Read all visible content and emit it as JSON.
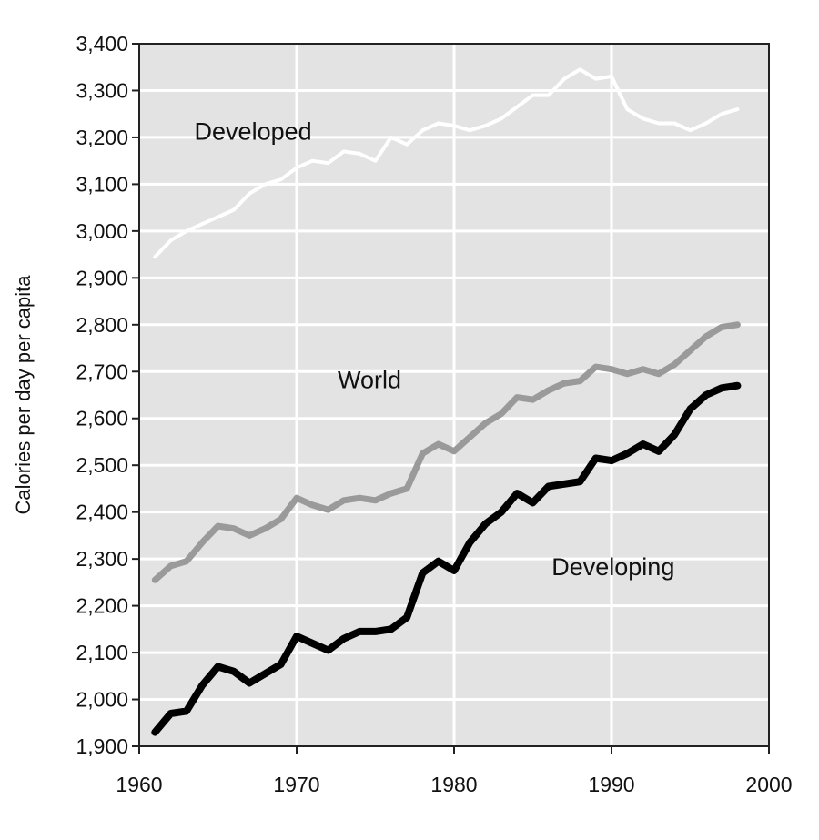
{
  "chart_data": {
    "type": "line",
    "title": "",
    "xlabel": "",
    "ylabel": "Calories per day per capita",
    "xlim": [
      1960,
      2000
    ],
    "ylim": [
      1900,
      3400
    ],
    "xticks": [
      1960,
      1970,
      1980,
      1990,
      2000
    ],
    "yticks": [
      1900,
      2000,
      2100,
      2200,
      2300,
      2400,
      2500,
      2600,
      2700,
      2800,
      2900,
      3000,
      3100,
      3200,
      3300,
      3400
    ],
    "grid": true,
    "legend": "none",
    "colors": {
      "background": "#ffffff",
      "plot_area": "#e3e3e3",
      "grid": "#ffffff",
      "axis": "#222222",
      "developed": "#ffffff",
      "world": "#9a9a9a",
      "developing": "#000000"
    },
    "series": [
      {
        "name": "Developed",
        "x": [
          1961,
          1962,
          1963,
          1964,
          1965,
          1966,
          1967,
          1968,
          1969,
          1970,
          1971,
          1972,
          1973,
          1974,
          1975,
          1976,
          1977,
          1978,
          1979,
          1980,
          1981,
          1982,
          1983,
          1984,
          1985,
          1986,
          1987,
          1988,
          1989,
          1990,
          1991,
          1992,
          1993,
          1994,
          1995,
          1996,
          1997,
          1998
        ],
        "values": [
          2945,
          2980,
          3000,
          3015,
          3030,
          3045,
          3080,
          3100,
          3110,
          3135,
          3150,
          3145,
          3170,
          3165,
          3150,
          3200,
          3185,
          3215,
          3230,
          3225,
          3215,
          3225,
          3240,
          3265,
          3290,
          3290,
          3325,
          3345,
          3325,
          3330,
          3260,
          3240,
          3230,
          3230,
          3215,
          3230,
          3250,
          3260
        ]
      },
      {
        "name": "World",
        "x": [
          1961,
          1962,
          1963,
          1964,
          1965,
          1966,
          1967,
          1968,
          1969,
          1970,
          1971,
          1972,
          1973,
          1974,
          1975,
          1976,
          1977,
          1978,
          1979,
          1980,
          1981,
          1982,
          1983,
          1984,
          1985,
          1986,
          1987,
          1988,
          1989,
          1990,
          1991,
          1992,
          1993,
          1994,
          1995,
          1996,
          1997,
          1998
        ],
        "values": [
          2255,
          2285,
          2295,
          2335,
          2370,
          2365,
          2350,
          2365,
          2385,
          2430,
          2415,
          2405,
          2425,
          2430,
          2425,
          2440,
          2450,
          2525,
          2545,
          2530,
          2560,
          2590,
          2610,
          2645,
          2640,
          2660,
          2675,
          2680,
          2710,
          2705,
          2695,
          2705,
          2695,
          2715,
          2745,
          2775,
          2795,
          2800
        ]
      },
      {
        "name": "Developing",
        "x": [
          1961,
          1962,
          1963,
          1964,
          1965,
          1966,
          1967,
          1968,
          1969,
          1970,
          1971,
          1972,
          1973,
          1974,
          1975,
          1976,
          1977,
          1978,
          1979,
          1980,
          1981,
          1982,
          1983,
          1984,
          1985,
          1986,
          1987,
          1988,
          1989,
          1990,
          1991,
          1992,
          1993,
          1994,
          1995,
          1996,
          1997,
          1998
        ],
        "values": [
          1930,
          1970,
          1975,
          2030,
          2070,
          2060,
          2035,
          2055,
          2075,
          2135,
          2120,
          2105,
          2130,
          2145,
          2145,
          2150,
          2175,
          2270,
          2295,
          2275,
          2335,
          2375,
          2400,
          2440,
          2420,
          2455,
          2460,
          2465,
          2515,
          2510,
          2525,
          2545,
          2530,
          2565,
          2620,
          2650,
          2665,
          2670
        ]
      }
    ],
    "series_labels": [
      {
        "text": "Developed",
        "x": 1963.5,
        "y": 3195,
        "anchor": "start"
      },
      {
        "text": "World",
        "x": 1972.6,
        "y": 2665,
        "anchor": "start"
      },
      {
        "text": "Developing",
        "x": 1986.2,
        "y": 2265,
        "anchor": "start"
      }
    ]
  }
}
